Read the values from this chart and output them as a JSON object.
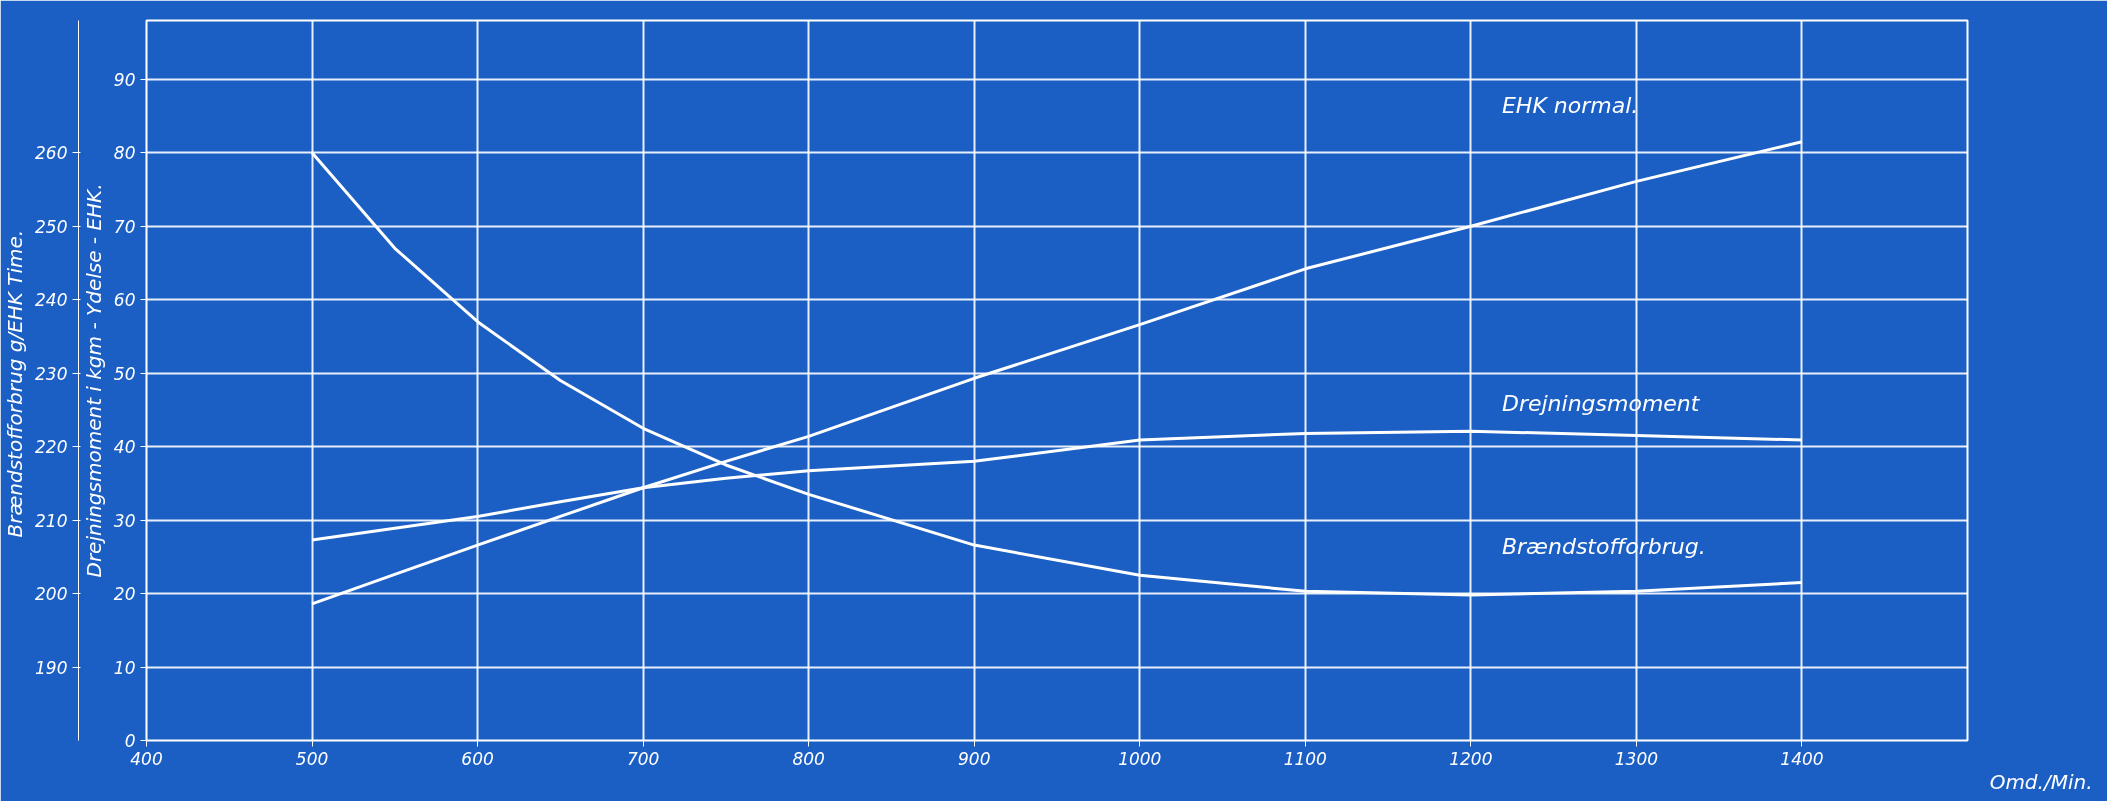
{
  "chart_data": {
    "type": "line",
    "xlabel": "Omd./Min.",
    "ylabel": "Drejningsmoment i kgm - Ydelse - EHK.",
    "y2label": "Brændstofforbrug  g/EHK Time.",
    "x": [
      500,
      550,
      600,
      650,
      700,
      750,
      800,
      900,
      1000,
      1100,
      1200,
      1300,
      1400
    ],
    "series": [
      {
        "name": "EHK normal.",
        "color": "#ffffff",
        "values": [
          18.6,
          22.6,
          26.6,
          30.5,
          34.4,
          38,
          41.4,
          49.3,
          56.6,
          64.2,
          70,
          76.1,
          81.5
        ]
      },
      {
        "name": "Drejningsmoment",
        "color": "#ffffff",
        "values": [
          27.3,
          28.9,
          30.5,
          32.5,
          34.4,
          35.7,
          36.7,
          38,
          40.9,
          41.8,
          42.1,
          41.5,
          40.9
        ]
      },
      {
        "name": "Brændstofforbrug.",
        "color": "#ffffff",
        "axis": "y2",
        "values": [
          260,
          247,
          237,
          229,
          222.5,
          217.5,
          213.5,
          206.6,
          202.5,
          200.3,
          199.8,
          200.3,
          201.5
        ]
      }
    ],
    "xlim": [
      400,
      1500
    ],
    "xticks": [
      400,
      500,
      600,
      700,
      800,
      900,
      1000,
      1100,
      1200,
      1300,
      1400
    ],
    "ylim": [
      0,
      98
    ],
    "yticks": [
      0,
      10,
      20,
      30,
      40,
      50,
      60,
      70,
      80,
      90
    ],
    "y2lim": [
      180,
      278
    ],
    "y2ticks": [
      190,
      200,
      210,
      220,
      230,
      240,
      250,
      260
    ],
    "grid": true,
    "marker": "none",
    "line_style": "solid"
  }
}
